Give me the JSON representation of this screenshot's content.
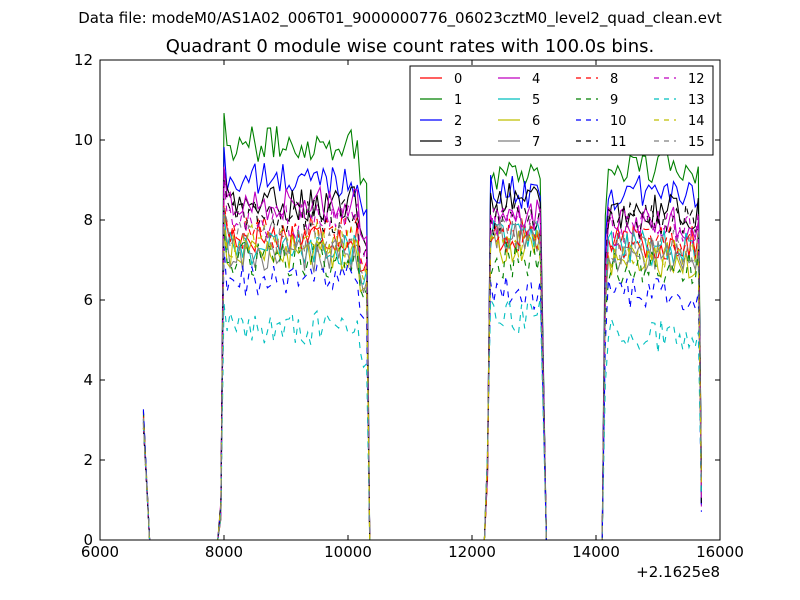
{
  "figure": {
    "suptitle": "Data file: modeM0/AS1A02_006T01_9000000776_06023cztM0_level2_quad_clean.evt"
  },
  "chart_data": {
    "type": "line",
    "title": "Quadrant 0 module wise count rates with 100.0s bins.",
    "xlabel": "",
    "ylabel": "",
    "x_offset_label": "+2.1625e8",
    "xlim": [
      6000,
      16000
    ],
    "ylim": [
      0,
      12
    ],
    "x_ticks": [
      6000,
      8000,
      10000,
      12000,
      14000,
      16000
    ],
    "y_ticks": [
      0,
      2,
      4,
      6,
      8,
      10,
      12
    ],
    "legend": {
      "location": "top-right",
      "ncol": 4
    },
    "segments": [
      {
        "start": 6700,
        "end": 7900
      },
      {
        "start": 7850,
        "end": 10350
      },
      {
        "start": 10300,
        "end": 12300
      },
      {
        "start": 12200,
        "end": 13300
      },
      {
        "start": 13200,
        "end": 14150
      },
      {
        "start": 14100,
        "end": 15700
      }
    ],
    "series": [
      {
        "name": "0",
        "color": "#ff0000",
        "dashed": false,
        "bands": [
          7.6,
          7.6,
          7.4
        ]
      },
      {
        "name": "1",
        "color": "#008000",
        "dashed": false,
        "bands": [
          9.9,
          9.2,
          9.3
        ]
      },
      {
        "name": "2",
        "color": "#0000ff",
        "dashed": false,
        "bands": [
          9.0,
          8.7,
          8.7
        ]
      },
      {
        "name": "3",
        "color": "#000000",
        "dashed": false,
        "bands": [
          8.4,
          8.5,
          8.2
        ]
      },
      {
        "name": "4",
        "color": "#bf00bf",
        "dashed": false,
        "bands": [
          8.4,
          8.2,
          7.9
        ]
      },
      {
        "name": "5",
        "color": "#00bfbf",
        "dashed": false,
        "bands": [
          7.3,
          7.6,
          7.3
        ]
      },
      {
        "name": "6",
        "color": "#bfbf00",
        "dashed": false,
        "bands": [
          7.2,
          7.3,
          7.0
        ]
      },
      {
        "name": "7",
        "color": "#7f7f7f",
        "dashed": false,
        "bands": [
          7.1,
          7.6,
          7.1
        ]
      },
      {
        "name": "8",
        "color": "#ff0000",
        "dashed": true,
        "bands": [
          7.7,
          7.6,
          7.5
        ]
      },
      {
        "name": "9",
        "color": "#008000",
        "dashed": true,
        "bands": [
          7.0,
          7.0,
          6.8
        ]
      },
      {
        "name": "10",
        "color": "#0000ff",
        "dashed": true,
        "bands": [
          6.5,
          6.2,
          6.1
        ]
      },
      {
        "name": "11",
        "color": "#000000",
        "dashed": true,
        "bands": [
          8.1,
          8.0,
          8.0
        ]
      },
      {
        "name": "12",
        "color": "#bf00bf",
        "dashed": true,
        "bands": [
          8.0,
          7.9,
          7.8
        ]
      },
      {
        "name": "13",
        "color": "#00bfbf",
        "dashed": true,
        "bands": [
          5.3,
          5.6,
          5.1
        ]
      },
      {
        "name": "14",
        "color": "#bfbf00",
        "dashed": true,
        "bands": [
          7.5,
          7.4,
          7.2
        ]
      },
      {
        "name": "15",
        "color": "#7f7f7f",
        "dashed": true,
        "bands": [
          7.6,
          7.7,
          7.3
        ]
      }
    ]
  }
}
